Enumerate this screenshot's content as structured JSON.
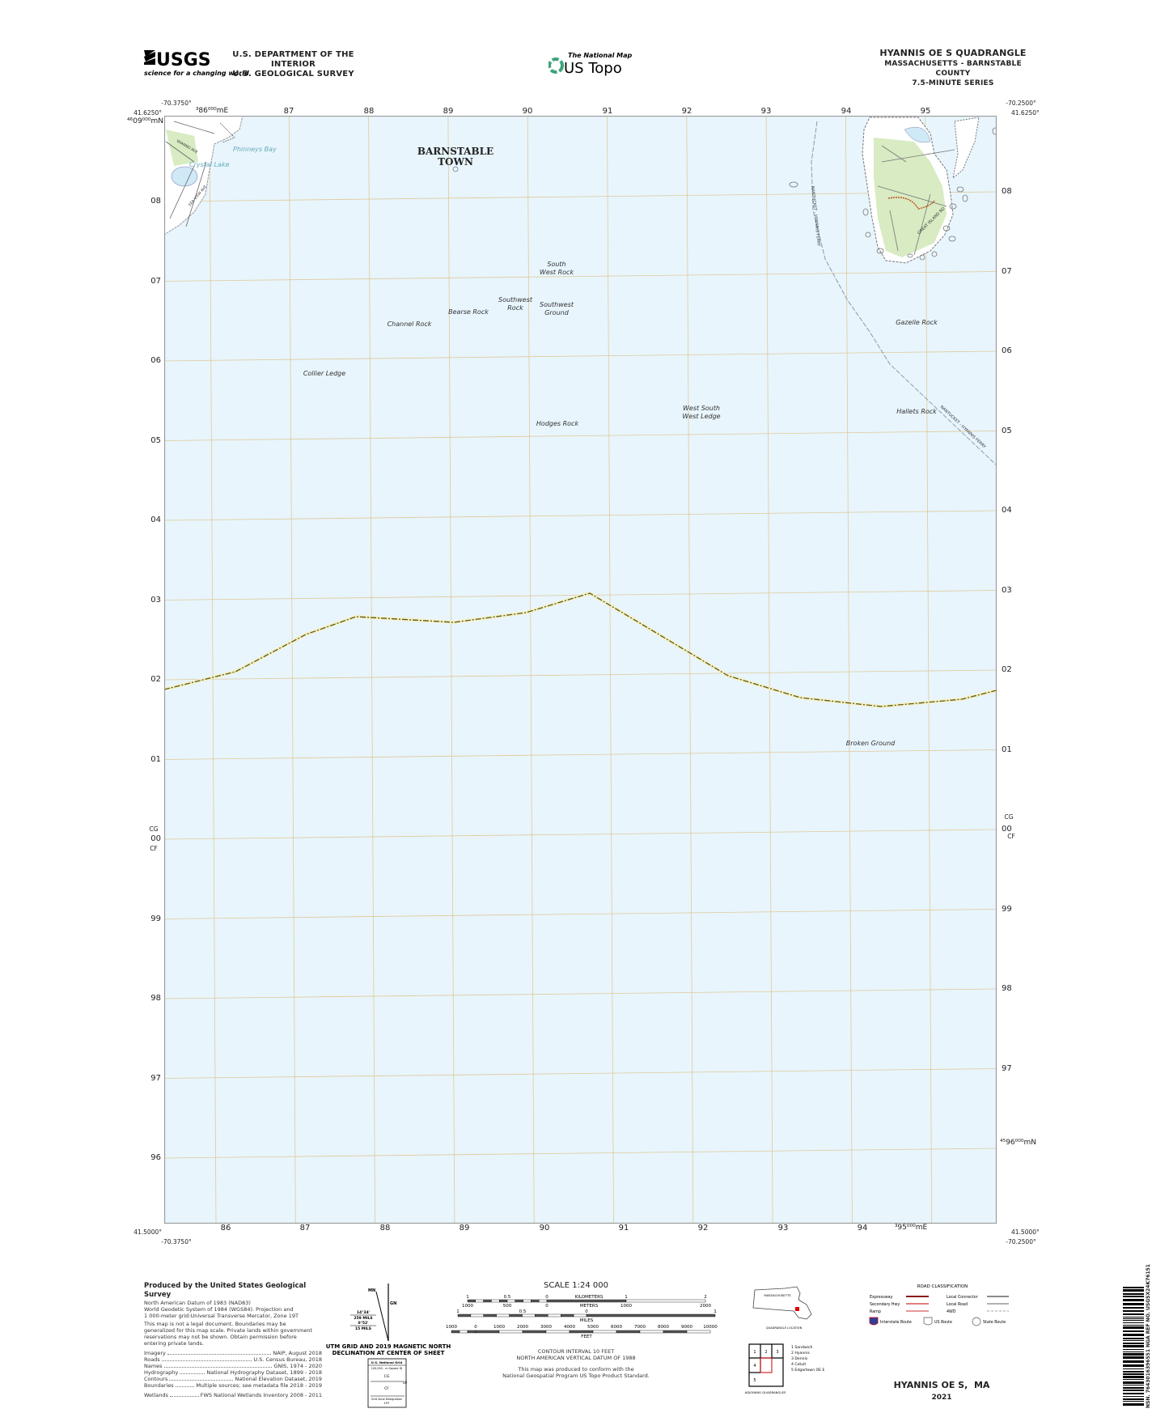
{
  "header": {
    "agency_logo": "USGS",
    "agency_tagline": "science for a changing world",
    "department": "U.S. DEPARTMENT OF THE INTERIOR",
    "survey": "U.S. GEOLOGICAL SURVEY",
    "product_small": "The National Map",
    "product": "US Topo",
    "quad_title": "HYANNIS OE S QUADRANGLE",
    "state_county": "MASSACHUSETTS - BARNSTABLE COUNTY",
    "series": "7.5-MINUTE SERIES"
  },
  "map": {
    "corners": {
      "top_left_lon": "-70.3750°",
      "top_left_lat": "41.6250°",
      "top_right_lon": "-70.2500°",
      "top_right_lat": "41.6250°",
      "bottom_left_lat": "41.5000°",
      "bottom_left_lon": "-70.3750°",
      "bottom_right_lat": "41.5000°",
      "bottom_right_lon": "-70.2500°"
    },
    "easting_top_first": "³86⁰⁰⁰mE",
    "easting_bottom_last": "³95⁰⁰⁰mE",
    "northing_top_first": "⁴⁶09⁰⁰⁰mN",
    "northing_right_last": "⁴⁵96⁰⁰⁰mN",
    "easting_labels": [
      "87",
      "88",
      "89",
      "90",
      "91",
      "92",
      "93",
      "94",
      "95"
    ],
    "easting_labels_bottom": [
      "86",
      "87",
      "88",
      "89",
      "90",
      "91",
      "92",
      "93",
      "94"
    ],
    "northing_labels": [
      "08",
      "07",
      "06",
      "05",
      "04",
      "03",
      "02",
      "01",
      "00",
      "99",
      "98",
      "97",
      "96"
    ],
    "grid_zone": {
      "upper": "CG",
      "lower": "CF"
    },
    "colors": {
      "water": "#e8f5fc",
      "land": "#ffffff",
      "vegetation": "#d8ebc2",
      "grid": "#e0c99a",
      "boundary": "#6b6b2a",
      "road": "#777777"
    },
    "town_label": [
      "BARNSTABLE",
      "TOWN"
    ],
    "water_labels": [
      "Phinneys Bay",
      "Crystal Lake"
    ],
    "features": [
      {
        "name": [
          "South",
          "West Rock"
        ]
      },
      {
        "name": [
          "Southwest",
          "Rock"
        ]
      },
      {
        "name": [
          "Southwest",
          "Ground"
        ]
      },
      {
        "name": [
          "Bearse Rock"
        ]
      },
      {
        "name": [
          "Channel Rock"
        ]
      },
      {
        "name": [
          "Collier Ledge"
        ]
      },
      {
        "name": [
          "Hodges Rock"
        ]
      },
      {
        "name": [
          "West South",
          "West Ledge"
        ]
      },
      {
        "name": [
          "Gazelle Rock"
        ]
      },
      {
        "name": [
          "Hallets Rock"
        ]
      },
      {
        "name": [
          "Broken Ground"
        ]
      }
    ],
    "ferry_label": "NANTUCKET - HYANNIS FERRY",
    "road_labels": [
      "GREAT ISLAND RD",
      "WIANNO AVE",
      "SEA VIEW AVE"
    ]
  },
  "footer": {
    "produced_by": "Produced by the United States Geological Survey",
    "datum_lines": [
      "North American Datum of 1983 (NAD83)",
      "World Geodetic System of 1984 (WGS84).  Projection and",
      "1 000-meter grid:Universal Transverse Mercator, Zone 19T"
    ],
    "disclaimer_lines": [
      "This map is not a legal document. Boundaries may be",
      "generalized for this map scale. Private lands within government",
      "reservations may not be shown. Obtain permission before",
      "entering private lands."
    ],
    "sources": [
      {
        "label": "Imagery",
        "value": "NAIP, August 2018"
      },
      {
        "label": "Roads",
        "value": "U.S. Census Bureau, 2018"
      },
      {
        "label": "Names",
        "value": "GNIS, 1974 - 2020"
      },
      {
        "label": "Hydrography",
        "value": "National Hydrography Dataset, 1899 - 2018"
      },
      {
        "label": "Contours",
        "value": "National Elevation Dataset, 2019"
      },
      {
        "label": "Boundaries",
        "value": "Multiple sources; see metadata file 2018 - 2019"
      },
      {
        "label": "Wetlands",
        "value": "FWS National Wetlands Inventory 2008 - 2011"
      }
    ],
    "declination": {
      "mn": "MN",
      "gn": "GN",
      "angle1": "14°34'",
      "mils1": "259 MILS",
      "angle2": "0°52'",
      "mils2": "15 MILS",
      "caption": [
        "UTM GRID AND 2019 MAGNETIC NORTH",
        "DECLINATION AT CENTER OF SHEET"
      ]
    },
    "national_grid": {
      "title": "U.S. National Grid",
      "subtitle": "100,000 - m Square ID",
      "upper": "CG",
      "lower": "CF",
      "line_value": "00",
      "zone_label": "Grid Zone Designation",
      "zone": "19T"
    },
    "scale": {
      "title": "SCALE 1:24 000",
      "km_ticks": [
        "1",
        "0.5",
        "0",
        "1",
        "2"
      ],
      "km_label": "KILOMETERS",
      "m_ticks": [
        "1000",
        "500",
        "0",
        "1000",
        "2000"
      ],
      "m_label": "METERS",
      "mi_ticks": [
        "1",
        "0.5",
        "0",
        "1"
      ],
      "mi_label": "MILES",
      "ft_ticks": [
        "1000",
        "0",
        "1000",
        "2000",
        "3000",
        "4000",
        "5000",
        "6000",
        "7000",
        "8000",
        "9000",
        "10000"
      ],
      "ft_label": "FEET"
    },
    "contour": [
      "CONTOUR INTERVAL 10 FEET",
      "NORTH AMERICAN VERTICAL DATUM OF 1988"
    ],
    "conform": [
      "This map was produced to conform with the",
      "National Geospatial Program US Topo Product Standard."
    ],
    "quad_location": {
      "state": "MASSACHUSETTS",
      "caption": "QUADRANGLE LOCATION"
    },
    "adjoining": {
      "cells": [
        "1",
        "2",
        "3",
        "4",
        "5"
      ],
      "list": [
        "1 Sandwich",
        "2 Hyannis",
        "3 Dennis",
        "4 Cotuit",
        "5 Edgartown OE E"
      ],
      "caption": "ADJOINING QUADRANGLES"
    },
    "road_classification": {
      "title": "ROAD CLASSIFICATION",
      "left": [
        "Expressway",
        "Secondary Hwy",
        "Ramp"
      ],
      "right": [
        "Local Connector",
        "Local Road",
        "4WD"
      ],
      "routes": [
        "Interstate Route",
        "US Route",
        "State Route"
      ]
    },
    "sheet_name": "HYANNIS OE S,  MA",
    "year": "2021",
    "barcode_text": "NSN. 7643016396551  NGA REF NO. USGSX24K76151"
  }
}
